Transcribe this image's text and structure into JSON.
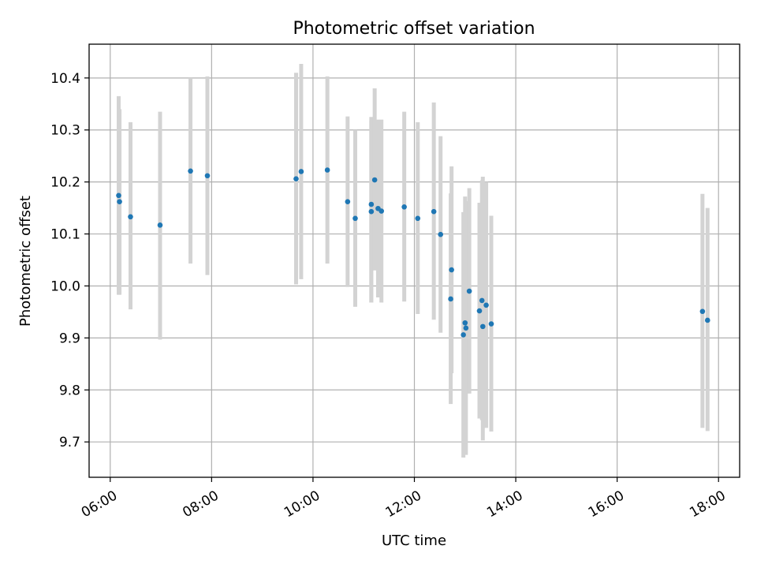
{
  "chart_data": {
    "type": "scatter",
    "title": "Photometric offset variation",
    "xlabel": "UTC time",
    "ylabel": "Photometric offset",
    "x_unit": "UTC time of day",
    "xlim": [
      "05:35",
      "18:25"
    ],
    "ylim": [
      9.632,
      10.465
    ],
    "x_ticks": [
      "06:00",
      "08:00",
      "10:00",
      "12:00",
      "14:00",
      "16:00",
      "18:00"
    ],
    "y_ticks": [
      "9.7",
      "9.8",
      "9.9",
      "10.0",
      "10.1",
      "10.2",
      "10.3",
      "10.4"
    ],
    "grid": true,
    "legend": "none",
    "marker_color": "#1f77b4",
    "errorbar_color": "#d3d3d3",
    "series": [
      {
        "points": [
          {
            "x": "06:10",
            "y": 10.174,
            "ylo": 9.983,
            "yhi": 10.365
          },
          {
            "x": "06:11",
            "y": 10.162,
            "ylo": 9.983,
            "yhi": 10.34
          },
          {
            "x": "06:24",
            "y": 10.133,
            "ylo": 9.955,
            "yhi": 10.315
          },
          {
            "x": "06:59",
            "y": 10.117,
            "ylo": 9.897,
            "yhi": 10.335
          },
          {
            "x": "07:35",
            "y": 10.221,
            "ylo": 10.043,
            "yhi": 10.4
          },
          {
            "x": "07:55",
            "y": 10.212,
            "ylo": 10.021,
            "yhi": 10.403
          },
          {
            "x": "09:40",
            "y": 10.206,
            "ylo": 10.003,
            "yhi": 10.41
          },
          {
            "x": "09:46",
            "y": 10.22,
            "ylo": 10.013,
            "yhi": 10.427
          },
          {
            "x": "10:17",
            "y": 10.223,
            "ylo": 10.043,
            "yhi": 10.403
          },
          {
            "x": "10:41",
            "y": 10.162,
            "ylo": 9.998,
            "yhi": 10.326
          },
          {
            "x": "10:50",
            "y": 10.13,
            "ylo": 9.96,
            "yhi": 10.3
          },
          {
            "x": "11:09",
            "y": 10.157,
            "ylo": 9.968,
            "yhi": 10.325
          },
          {
            "x": "11:09",
            "y": 10.143,
            "ylo": 9.968,
            "yhi": 10.318
          },
          {
            "x": "11:13",
            "y": 10.204,
            "ylo": 10.03,
            "yhi": 10.38
          },
          {
            "x": "11:17",
            "y": 10.149,
            "ylo": 9.978,
            "yhi": 10.32
          },
          {
            "x": "11:21",
            "y": 10.144,
            "ylo": 9.968,
            "yhi": 10.32
          },
          {
            "x": "11:48",
            "y": 10.152,
            "ylo": 9.97,
            "yhi": 10.335
          },
          {
            "x": "12:04",
            "y": 10.13,
            "ylo": 9.946,
            "yhi": 10.315
          },
          {
            "x": "12:23",
            "y": 10.143,
            "ylo": 9.935,
            "yhi": 10.353
          },
          {
            "x": "12:31",
            "y": 10.099,
            "ylo": 9.91,
            "yhi": 10.288
          },
          {
            "x": "12:44",
            "y": 10.031,
            "ylo": 9.832,
            "yhi": 10.23
          },
          {
            "x": "12:43",
            "y": 9.975,
            "ylo": 9.773,
            "yhi": 10.178
          },
          {
            "x": "12:58",
            "y": 9.906,
            "ylo": 9.67,
            "yhi": 10.142
          },
          {
            "x": "13:00",
            "y": 9.929,
            "ylo": 9.687,
            "yhi": 10.172
          },
          {
            "x": "13:01",
            "y": 9.919,
            "ylo": 9.675,
            "yhi": 10.163
          },
          {
            "x": "13:05",
            "y": 9.99,
            "ylo": 9.793,
            "yhi": 10.188
          },
          {
            "x": "13:17",
            "y": 9.952,
            "ylo": 9.745,
            "yhi": 10.16
          },
          {
            "x": "13:20",
            "y": 9.972,
            "ylo": 9.742,
            "yhi": 10.203
          },
          {
            "x": "13:21",
            "y": 9.922,
            "ylo": 9.703,
            "yhi": 10.21
          },
          {
            "x": "13:25",
            "y": 9.963,
            "ylo": 9.727,
            "yhi": 10.2
          },
          {
            "x": "13:31",
            "y": 9.927,
            "ylo": 9.72,
            "yhi": 10.135
          },
          {
            "x": "17:41",
            "y": 9.951,
            "ylo": 9.727,
            "yhi": 10.177
          },
          {
            "x": "17:47",
            "y": 9.934,
            "ylo": 9.721,
            "yhi": 10.15
          }
        ]
      }
    ]
  }
}
